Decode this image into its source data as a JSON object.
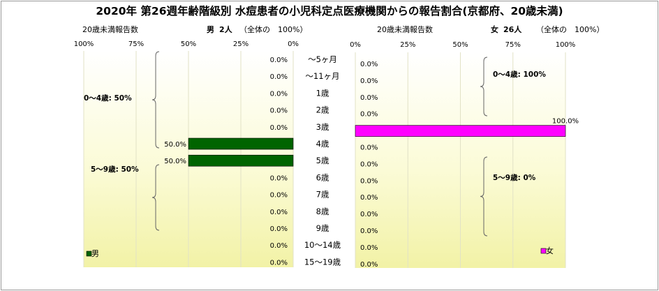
{
  "title": "2020年 第26週年齢階級別 水痘患者の小児科定点医療機関からの報告割合(京都府、20歳未満)",
  "chart_data": [
    {
      "type": "bar",
      "orientation": "horizontal",
      "side": "left",
      "subtitle_left": "20歳未満報告数",
      "subtitle_sex": "男",
      "subtitle_count": "2人",
      "subtitle_total": "（全体の　100%）",
      "xlim": [
        0,
        100
      ],
      "x_ticks": [
        "100%",
        "75%",
        "50%",
        "25%",
        "0%"
      ],
      "categories": [
        "～5ヶ月",
        "～11ヶ月",
        "1歳",
        "2歳",
        "3歳",
        "4歳",
        "5歳",
        "6歳",
        "7歳",
        "8歳",
        "9歳",
        "10～14歳",
        "15～19歳"
      ],
      "series": [
        {
          "name": "男",
          "color": "#006400",
          "values": [
            0,
            0,
            0,
            0,
            0,
            50,
            50,
            0,
            0,
            0,
            0,
            0,
            0
          ],
          "labels": [
            "0.0%",
            "0.0%",
            "0.0%",
            "0.0%",
            "0.0%",
            "50.0%",
            "50.0%",
            "0.0%",
            "0.0%",
            "0.0%",
            "0.0%",
            "0.0%",
            "0.0%"
          ]
        }
      ],
      "annotations": [
        "0～4歳: 50%",
        "5～9歳: 50%"
      ]
    },
    {
      "type": "bar",
      "orientation": "horizontal",
      "side": "right",
      "subtitle_left": "20歳未満報告数",
      "subtitle_sex": "女",
      "subtitle_count": "26人",
      "subtitle_total": "（全体の　100%）",
      "xlim": [
        0,
        100
      ],
      "x_ticks": [
        "0%",
        "25%",
        "50%",
        "75%",
        "100%"
      ],
      "categories": [
        "～5ヶ月",
        "～11ヶ月",
        "1歳",
        "2歳",
        "3歳",
        "4歳",
        "5歳",
        "6歳",
        "7歳",
        "8歳",
        "9歳",
        "10～14歳",
        "15～19歳"
      ],
      "series": [
        {
          "name": "女",
          "color": "#ff00ff",
          "values": [
            0,
            0,
            0,
            0,
            100,
            0,
            0,
            0,
            0,
            0,
            0,
            0,
            0
          ],
          "labels": [
            "0.0%",
            "0.0%",
            "0.0%",
            "0.0%",
            "100.0%",
            "0.0%",
            "0.0%",
            "0.0%",
            "0.0%",
            "0.0%",
            "0.0%",
            "0.0%",
            "0.0%"
          ]
        }
      ],
      "annotations": [
        "0～4歳: 100%",
        "5～9歳: 0%"
      ]
    }
  ]
}
